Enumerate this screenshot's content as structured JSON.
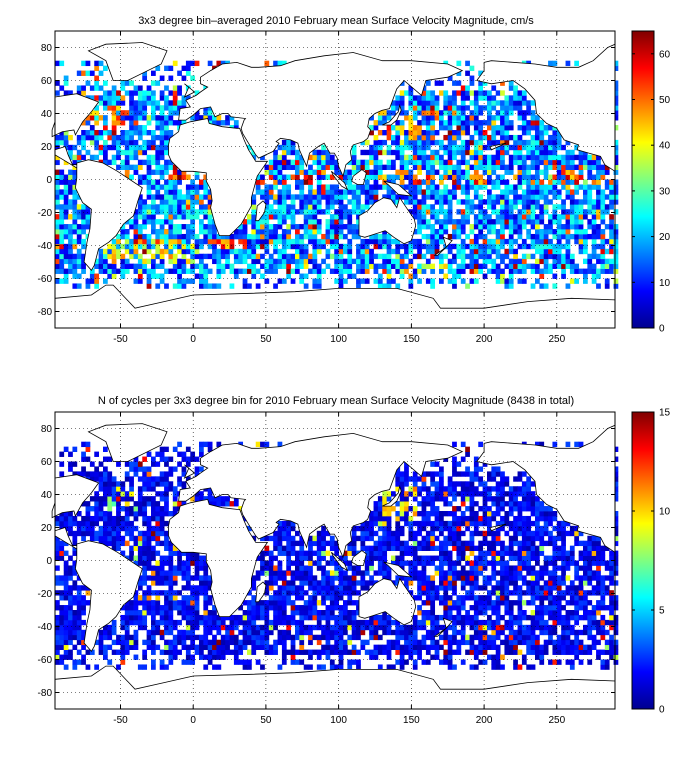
{
  "chart_data": [
    {
      "type": "heatmap",
      "title": "3x3 degree bin–averaged 2010 February mean Surface Velocity Magnitude, cm/s",
      "xlabel": "",
      "ylabel": "",
      "xlim": [
        -95,
        290
      ],
      "ylim": [
        -90,
        90
      ],
      "x_ticks": [
        -50,
        0,
        50,
        100,
        150,
        200,
        250
      ],
      "y_ticks": [
        80,
        60,
        40,
        20,
        0,
        -20,
        -40,
        -60,
        -80
      ],
      "bin_size_degrees": 3,
      "grid": true,
      "colormap": "jet",
      "colorbar": {
        "min": 0,
        "max": 65,
        "ticks": [
          0,
          10,
          20,
          30,
          40,
          50,
          60
        ],
        "placement": "right"
      },
      "value_distribution": {
        "typical": 18,
        "high_bins_share": 0.09
      },
      "high_value_regions": [
        {
          "lon_range": [
            -20,
            90
          ],
          "lat_range": [
            -3,
            6
          ],
          "value": 60
        },
        {
          "lon_range": [
            130,
            290
          ],
          "lat_range": [
            -3,
            6
          ],
          "value": 55
        },
        {
          "lon_range": [
            125,
            170
          ],
          "lat_range": [
            25,
            42
          ],
          "value": 50
        },
        {
          "lon_range": [
            -80,
            -45
          ],
          "lat_range": [
            30,
            45
          ],
          "value": 55
        },
        {
          "lon_range": [
            -60,
            5
          ],
          "lat_range": [
            -50,
            -37
          ],
          "value": 45
        },
        {
          "lon_range": [
            10,
            40
          ],
          "lat_range": [
            -42,
            -35
          ],
          "value": 55
        },
        {
          "lon_range": [
            130,
            175
          ],
          "lat_range": [
            -60,
            -50
          ],
          "value": 45
        }
      ]
    },
    {
      "type": "heatmap",
      "title": "N of cycles per 3x3 degree bin for 2010 February mean Surface Velocity Magnitude (8438 in total)",
      "xlabel": "",
      "ylabel": "",
      "total_cycles": 8438,
      "xlim": [
        -95,
        290
      ],
      "ylim": [
        -90,
        90
      ],
      "x_ticks": [
        -50,
        0,
        50,
        100,
        150,
        200,
        250
      ],
      "y_ticks": [
        80,
        60,
        40,
        20,
        0,
        -20,
        -40,
        -60,
        -80
      ],
      "bin_size_degrees": 3,
      "grid": true,
      "colormap": "jet",
      "colorbar": {
        "min": 0,
        "max": 15,
        "ticks": [
          0,
          5,
          10,
          15
        ],
        "placement": "right"
      },
      "value_distribution": {
        "typical": 2,
        "high_bins_share": 0.05
      },
      "high_value_regions": [
        {
          "lon_range": [
            130,
            155
          ],
          "lat_range": [
            25,
            45
          ],
          "value": 11
        },
        {
          "lon_range": [
            -60,
            -40
          ],
          "lat_range": [
            30,
            45
          ],
          "value": 9
        }
      ]
    }
  ]
}
